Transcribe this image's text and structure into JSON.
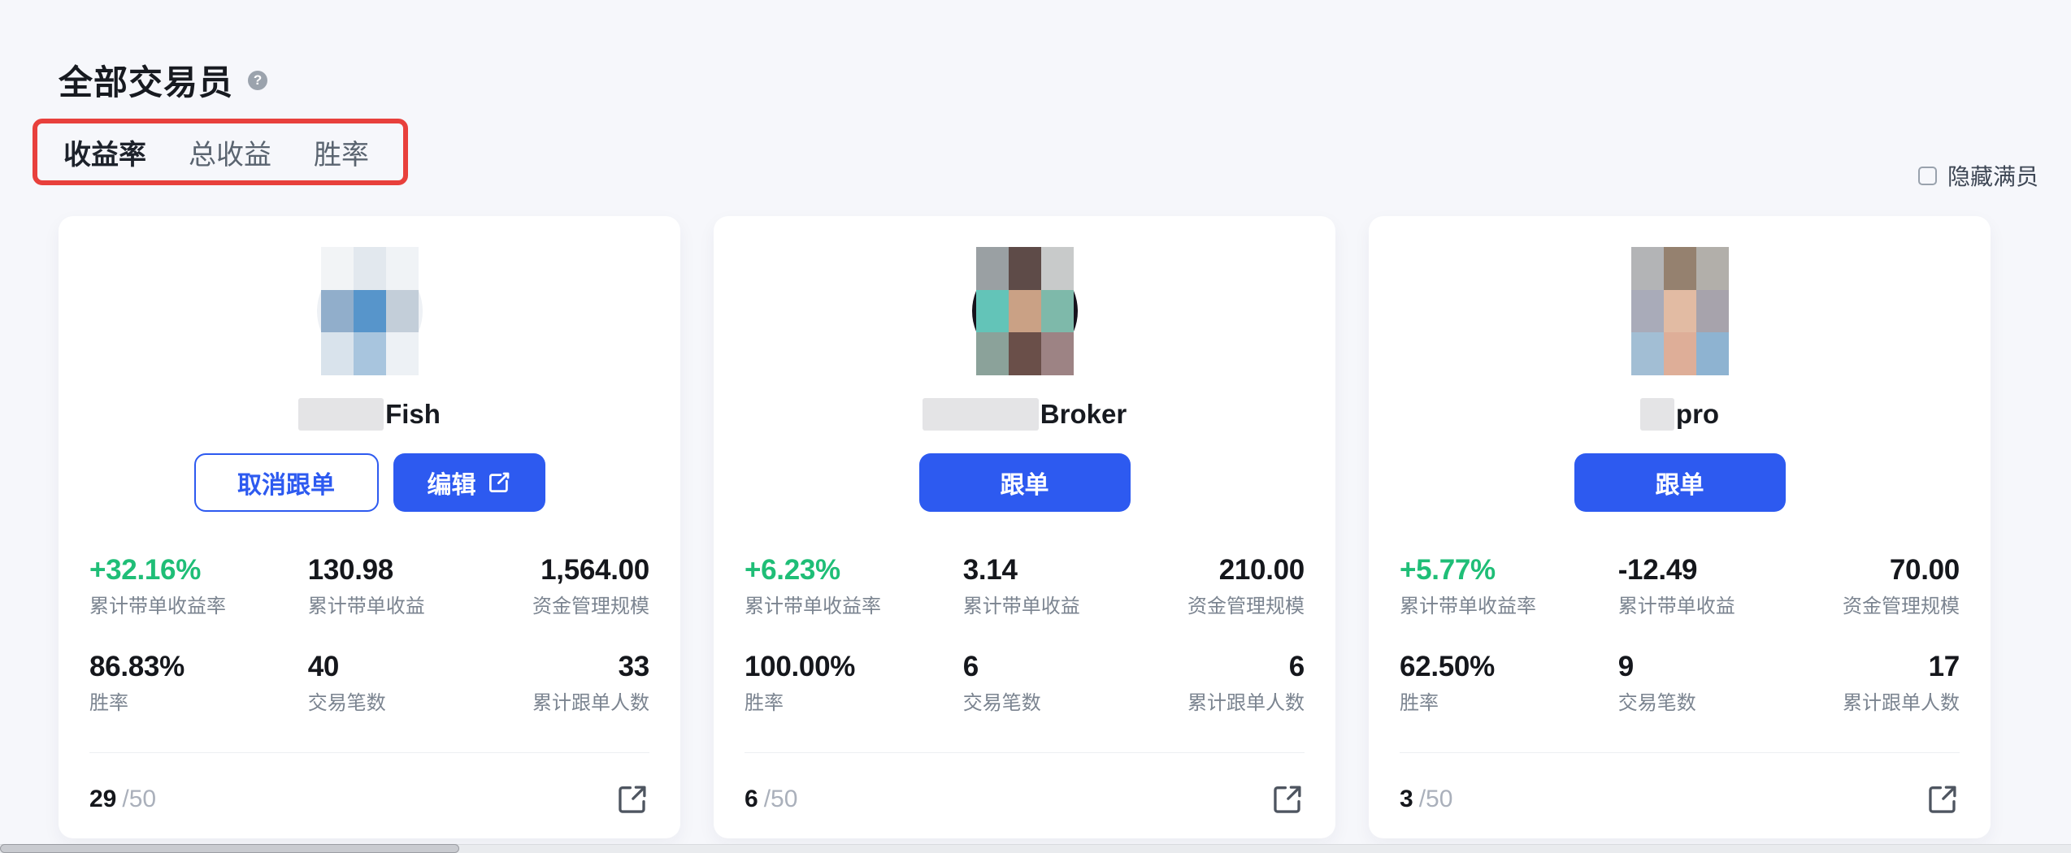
{
  "colors": {
    "accent_blue": "#2d5af0",
    "positive_green": "#1fbe77",
    "annotation_red": "#e8403c",
    "page_bg": "#f6f7fb"
  },
  "header": {
    "title": "全部交易员",
    "help_glyph": "?",
    "tabs": [
      {
        "label": "收益率",
        "active": true
      },
      {
        "label": "总收益",
        "active": false
      },
      {
        "label": "胜率",
        "active": false
      }
    ],
    "hide_full": {
      "label": "隐藏满员",
      "checked": false
    }
  },
  "cards": [
    {
      "name": {
        "visible": "Fish",
        "blur_width": 105
      },
      "avatar": {
        "bg": "#eef1f5",
        "arc": null,
        "cells": [
          "#f2f4f6",
          "#e2e8ee",
          "#f0f3f6",
          "#91aecb",
          "#5795cb",
          "#c3ced9",
          "#d9e3ec",
          "#a8c5de",
          "#edf1f5"
        ]
      },
      "buttons": [
        {
          "name": "cancel-follow-button",
          "label": "取消跟单",
          "style": "outline"
        },
        {
          "name": "edit-button",
          "label": "编辑",
          "style": "primary",
          "icon": "edit"
        }
      ],
      "stats": [
        {
          "value": "+32.16%",
          "label": "累计带单收益率"
        },
        {
          "value": "130.98",
          "label": "累计带单收益"
        },
        {
          "value": "1,564.00",
          "label": "资金管理规模"
        },
        {
          "value": "86.83%",
          "label": "胜率"
        },
        {
          "value": "40",
          "label": "交易笔数"
        },
        {
          "value": "33",
          "label": "累计跟单人数"
        }
      ],
      "slots": {
        "current": "29",
        "cap": "/50"
      }
    },
    {
      "name": {
        "visible": "Broker",
        "blur_width": 143
      },
      "avatar": {
        "bg": "#17121c",
        "arc": null,
        "cells": [
          "#9aa0a3",
          "#5e4b48",
          "#c8caca",
          "#63c4b8",
          "#caa185",
          "#7eb9aa",
          "#8ba29a",
          "#6a4f49",
          "#9d8384"
        ]
      },
      "buttons": [
        {
          "name": "follow-button",
          "label": "跟单",
          "style": "primary wide"
        }
      ],
      "stats": [
        {
          "value": "+6.23%",
          "label": "累计带单收益率"
        },
        {
          "value": "3.14",
          "label": "累计带单收益"
        },
        {
          "value": "210.00",
          "label": "资金管理规模"
        },
        {
          "value": "100.00%",
          "label": "胜率"
        },
        {
          "value": "6",
          "label": "交易笔数"
        },
        {
          "value": "6",
          "label": "累计跟单人数"
        }
      ],
      "slots": {
        "current": "6",
        "cap": "/50"
      }
    },
    {
      "name": {
        "visible": "pro",
        "blur_width": 42
      },
      "avatar": {
        "bg": "#ffffff",
        "arc": "#3a2a21",
        "cells": [
          "#b3b4b6",
          "#95816f",
          "#b2afaa",
          "#a9abb9",
          "#e2bba3",
          "#a7a3ac",
          "#a2bed4",
          "#deae98",
          "#8eb3d1"
        ]
      },
      "buttons": [
        {
          "name": "follow-button",
          "label": "跟单",
          "style": "primary wide"
        }
      ],
      "stats": [
        {
          "value": "+5.77%",
          "label": "累计带单收益率"
        },
        {
          "value": "-12.49",
          "label": "累计带单收益"
        },
        {
          "value": "70.00",
          "label": "资金管理规模"
        },
        {
          "value": "62.50%",
          "label": "胜率"
        },
        {
          "value": "9",
          "label": "交易笔数"
        },
        {
          "value": "17",
          "label": "累计跟单人数"
        }
      ],
      "slots": {
        "current": "3",
        "cap": "/50"
      }
    }
  ]
}
